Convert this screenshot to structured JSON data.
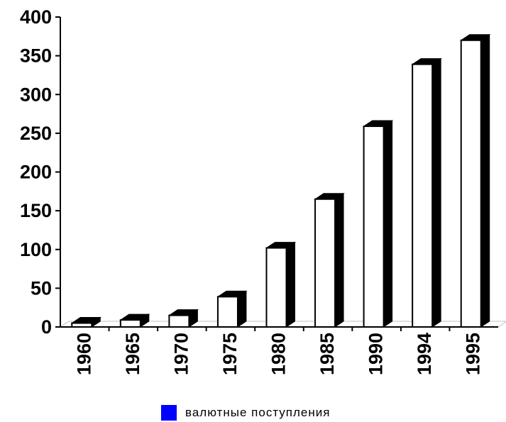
{
  "chart_data": {
    "type": "bar",
    "categories": [
      "1960",
      "1965",
      "1970",
      "1975",
      "1980",
      "1985",
      "1990",
      "1994",
      "1995"
    ],
    "series": [
      {
        "name": "валютные поступления",
        "values": [
          5,
          9,
          15,
          39,
          102,
          165,
          259,
          339,
          370
        ]
      }
    ],
    "ylim": [
      0,
      400
    ],
    "yticks": [
      "0",
      "50",
      "100",
      "150",
      "200",
      "250",
      "300",
      "350",
      "400"
    ],
    "title": "",
    "xlabel": "",
    "ylabel": "",
    "grid": false,
    "legend_position": "bottom",
    "colors": {
      "bar_face": "#ffffff",
      "bar_side": "#000000",
      "legend_swatch": "#0000ff",
      "floor": "#c0c0c0"
    }
  },
  "legend": {
    "label": "валютные поступления"
  }
}
